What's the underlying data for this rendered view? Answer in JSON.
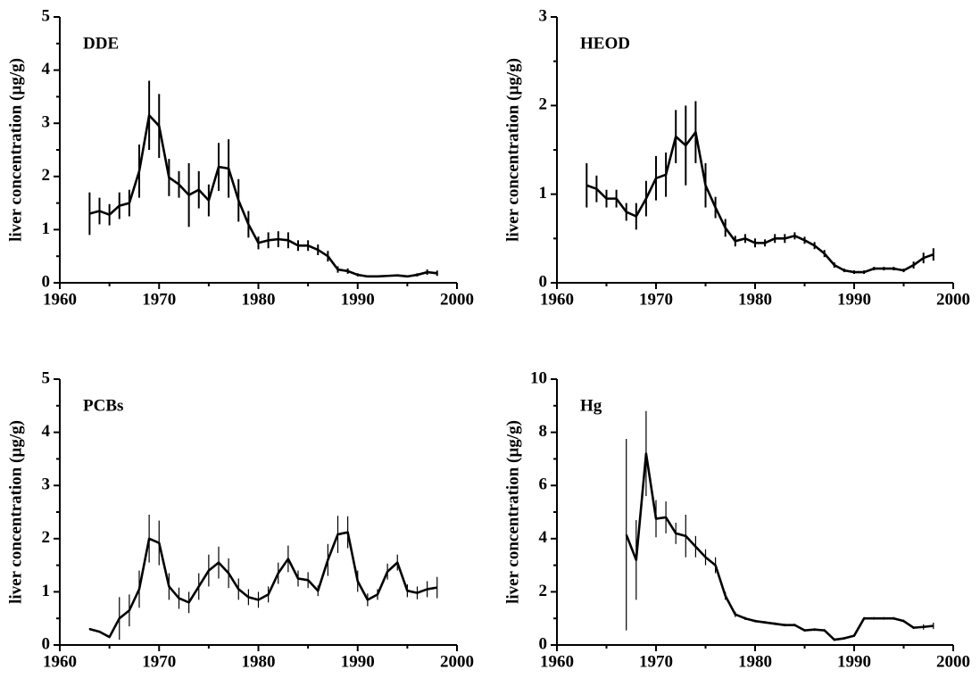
{
  "chart_data": [
    {
      "type": "line",
      "label": "DDE",
      "ylabel": "liver concentration (µg/g)",
      "x": [
        1963,
        1964,
        1965,
        1966,
        1967,
        1968,
        1969,
        1970,
        1971,
        1972,
        1973,
        1974,
        1975,
        1976,
        1977,
        1978,
        1979,
        1980,
        1981,
        1982,
        1983,
        1984,
        1985,
        1986,
        1987,
        1988,
        1989,
        1990,
        1991,
        1992,
        1993,
        1994,
        1995,
        1996,
        1997,
        1998
      ],
      "series": [
        {
          "name": "DDE",
          "color": "#000000",
          "values": [
            1.3,
            1.35,
            1.28,
            1.45,
            1.5,
            2.1,
            3.15,
            2.95,
            1.98,
            1.85,
            1.65,
            1.75,
            1.55,
            2.18,
            2.15,
            1.55,
            1.1,
            0.75,
            0.8,
            0.82,
            0.8,
            0.7,
            0.7,
            0.62,
            0.5,
            0.25,
            0.22,
            0.15,
            0.12,
            0.12,
            0.13,
            0.14,
            0.12,
            0.15,
            0.2,
            0.18
          ],
          "errors": [
            0.4,
            0.25,
            0.2,
            0.25,
            0.25,
            0.5,
            0.65,
            0.6,
            0.35,
            0.25,
            0.6,
            0.35,
            0.3,
            0.45,
            0.55,
            0.4,
            0.25,
            0.12,
            0.15,
            0.15,
            0.15,
            0.1,
            0.1,
            0.1,
            0.1,
            0.06,
            0.05,
            0.03,
            0.02,
            0.02,
            0.02,
            0.02,
            0.02,
            0.03,
            0.05,
            0.05
          ]
        }
      ],
      "xlim": [
        1960,
        2000
      ],
      "xticks": [
        1960,
        1970,
        1980,
        1990,
        2000
      ],
      "xminorticks": [
        1965,
        1975,
        1985,
        1995
      ],
      "ylim": [
        0,
        5
      ],
      "yticks": [
        0,
        1,
        2,
        3,
        4,
        5
      ],
      "yminorticks": [
        0.5,
        1.5,
        2.5,
        3.5,
        4.5
      ]
    },
    {
      "type": "line",
      "label": "HEOD",
      "ylabel": "liver concentration (µg/g)",
      "x": [
        1963,
        1964,
        1965,
        1966,
        1967,
        1968,
        1969,
        1970,
        1971,
        1972,
        1973,
        1974,
        1975,
        1976,
        1977,
        1978,
        1979,
        1980,
        1981,
        1982,
        1983,
        1984,
        1985,
        1986,
        1987,
        1988,
        1989,
        1990,
        1991,
        1992,
        1993,
        1994,
        1995,
        1996,
        1997,
        1998
      ],
      "series": [
        {
          "name": "HEOD",
          "color": "#000000",
          "values": [
            1.1,
            1.06,
            0.95,
            0.95,
            0.8,
            0.75,
            0.95,
            1.18,
            1.22,
            1.65,
            1.55,
            1.7,
            1.1,
            0.85,
            0.62,
            0.47,
            0.5,
            0.45,
            0.45,
            0.5,
            0.5,
            0.53,
            0.48,
            0.42,
            0.33,
            0.2,
            0.14,
            0.12,
            0.12,
            0.16,
            0.16,
            0.16,
            0.14,
            0.2,
            0.28,
            0.32
          ],
          "errors": [
            0.25,
            0.15,
            0.1,
            0.1,
            0.1,
            0.15,
            0.2,
            0.25,
            0.25,
            0.3,
            0.45,
            0.35,
            0.25,
            0.12,
            0.1,
            0.06,
            0.05,
            0.05,
            0.04,
            0.05,
            0.05,
            0.04,
            0.04,
            0.04,
            0.04,
            0.03,
            0.02,
            0.02,
            0.02,
            0.02,
            0.02,
            0.02,
            0.02,
            0.04,
            0.06,
            0.07
          ]
        }
      ],
      "xlim": [
        1960,
        2000
      ],
      "xticks": [
        1960,
        1970,
        1980,
        1990,
        2000
      ],
      "xminorticks": [
        1965,
        1975,
        1985,
        1995
      ],
      "ylim": [
        0,
        3
      ],
      "yticks": [
        0,
        1,
        2,
        3
      ],
      "yminorticks": [
        0.5,
        1.5,
        2.5
      ]
    },
    {
      "type": "line",
      "label": "PCBs",
      "ylabel": "liver concentration (µg/g)",
      "x": [
        1963,
        1964,
        1965,
        1966,
        1967,
        1968,
        1969,
        1970,
        1971,
        1972,
        1973,
        1974,
        1975,
        1976,
        1977,
        1978,
        1979,
        1980,
        1981,
        1982,
        1983,
        1984,
        1985,
        1986,
        1987,
        1988,
        1989,
        1990,
        1991,
        1992,
        1993,
        1994,
        1995,
        1996,
        1997,
        1998
      ],
      "series": [
        {
          "name": "PCBs",
          "color": "#000000",
          "values": [
            0.3,
            0.25,
            0.15,
            0.5,
            0.65,
            1.05,
            2.0,
            1.92,
            1.1,
            0.88,
            0.8,
            1.1,
            1.4,
            1.55,
            1.35,
            1.05,
            0.9,
            0.85,
            0.95,
            1.35,
            1.62,
            1.25,
            1.22,
            1.02,
            1.6,
            2.08,
            2.12,
            1.2,
            0.85,
            0.95,
            1.38,
            1.55,
            1.02,
            0.98,
            1.05,
            1.08
          ],
          "errors": [
            0.02,
            0.02,
            0.02,
            0.4,
            0.3,
            0.35,
            0.45,
            0.42,
            0.25,
            0.2,
            0.2,
            0.25,
            0.3,
            0.3,
            0.28,
            0.2,
            0.15,
            0.15,
            0.15,
            0.2,
            0.25,
            0.15,
            0.15,
            0.1,
            0.3,
            0.35,
            0.3,
            0.2,
            0.12,
            0.1,
            0.15,
            0.15,
            0.12,
            0.12,
            0.15,
            0.2
          ]
        }
      ],
      "xlim": [
        1960,
        2000
      ],
      "xticks": [
        1960,
        1970,
        1980,
        1990,
        2000
      ],
      "xminorticks": [
        1965,
        1975,
        1985,
        1995
      ],
      "ylim": [
        0,
        5
      ],
      "yticks": [
        0,
        1,
        2,
        3,
        4,
        5
      ],
      "yminorticks": [
        0.5,
        1.5,
        2.5,
        3.5,
        4.5
      ]
    },
    {
      "type": "line",
      "label": "Hg",
      "ylabel": "liver concentration (µg/g)",
      "x": [
        1967,
        1968,
        1969,
        1970,
        1971,
        1972,
        1973,
        1974,
        1975,
        1976,
        1977,
        1978,
        1979,
        1980,
        1981,
        1982,
        1983,
        1984,
        1985,
        1986,
        1987,
        1988,
        1989,
        1990,
        1991,
        1992,
        1993,
        1994,
        1995,
        1996,
        1997,
        1998
      ],
      "series": [
        {
          "name": "Hg",
          "color": "#000000",
          "values": [
            4.15,
            3.2,
            7.2,
            4.75,
            4.8,
            4.2,
            4.1,
            3.7,
            3.3,
            3.0,
            1.85,
            1.15,
            1.0,
            0.9,
            0.85,
            0.8,
            0.75,
            0.75,
            0.55,
            0.58,
            0.55,
            0.2,
            0.25,
            0.35,
            1.0,
            1.0,
            1.0,
            1.0,
            0.9,
            0.65,
            0.68,
            0.72
          ],
          "errors": [
            3.6,
            1.5,
            1.6,
            0.7,
            0.6,
            0.4,
            0.8,
            0.4,
            0.3,
            0.3,
            0.15,
            0.1,
            0.06,
            0.05,
            0.05,
            0.05,
            0.05,
            0.05,
            0.05,
            0.05,
            0.05,
            0.05,
            0.05,
            0.05,
            0.05,
            0.05,
            0.05,
            0.05,
            0.05,
            0.05,
            0.1,
            0.12
          ]
        }
      ],
      "xlim": [
        1960,
        2000
      ],
      "xticks": [
        1960,
        1970,
        1980,
        1990,
        2000
      ],
      "xminorticks": [
        1965,
        1975,
        1985,
        1995
      ],
      "ylim": [
        0,
        10
      ],
      "yticks": [
        0,
        2,
        4,
        6,
        8,
        10
      ],
      "yminorticks": [
        1,
        3,
        5,
        7,
        9
      ]
    }
  ]
}
